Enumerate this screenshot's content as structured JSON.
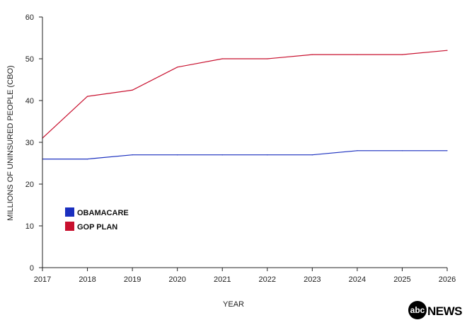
{
  "chart_data": {
    "type": "line",
    "title": "",
    "xlabel": "YEAR",
    "ylabel": "MILLIONS OF UNINSURED PEOPLE (CBO)",
    "x": [
      2017,
      2018,
      2019,
      2020,
      2021,
      2022,
      2023,
      2024,
      2025,
      2026
    ],
    "xlim": [
      2017,
      2026
    ],
    "ylim": [
      0,
      60
    ],
    "yticks": [
      0,
      10,
      20,
      30,
      40,
      50,
      60
    ],
    "grid": false,
    "legend_position": "bottom-left",
    "series": [
      {
        "name": "OBAMACARE",
        "color": "#1a2fbf",
        "values": [
          26,
          26,
          27,
          27,
          27,
          27,
          27,
          28,
          28,
          28
        ]
      },
      {
        "name": "GOP PLAN",
        "color": "#c8102e",
        "values": [
          31,
          41,
          42.5,
          48,
          50,
          50,
          51,
          51,
          51,
          52
        ]
      }
    ]
  },
  "branding": {
    "logo_text": "abc",
    "logo_word": "NEWS"
  }
}
